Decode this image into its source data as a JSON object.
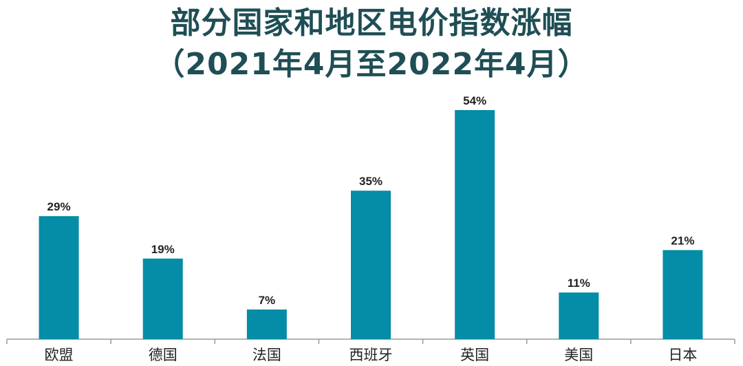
{
  "chart_data": {
    "type": "bar",
    "title_line1": "部分国家和地区电价指数涨幅",
    "title_line2": "（2021年4月至2022年4月）",
    "categories": [
      "欧盟",
      "德国",
      "法国",
      "西班牙",
      "英国",
      "美国",
      "日本"
    ],
    "values": [
      29,
      19,
      7,
      35,
      54,
      11,
      21
    ],
    "value_labels": [
      "29%",
      "19%",
      "7%",
      "35%",
      "54%",
      "11%",
      "21%"
    ],
    "unit": "%",
    "ylim": [
      0,
      54
    ],
    "bar_color": "#058ca6",
    "title_color": "#1f4e55"
  }
}
